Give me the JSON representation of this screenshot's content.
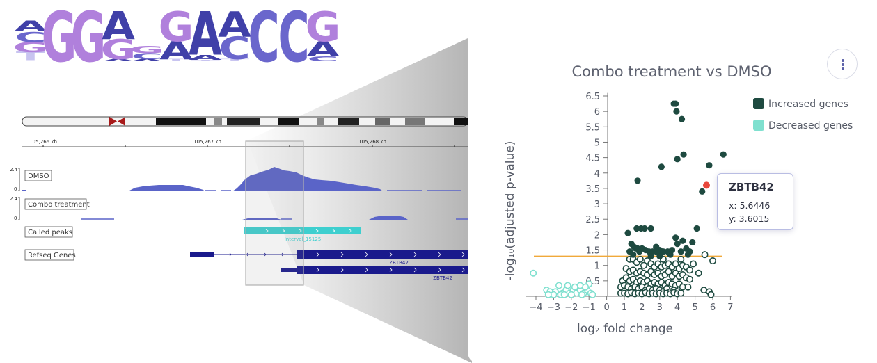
{
  "sequence_logo": {
    "columns": [
      [
        "T",
        "G",
        "C",
        "A"
      ],
      [
        "G"
      ],
      [
        "G"
      ],
      [
        "A",
        "G",
        "A"
      ],
      [
        "A",
        "C",
        "G"
      ],
      [
        "T",
        "A",
        "G"
      ],
      [
        "T",
        "A",
        "A"
      ],
      [
        "T",
        "C",
        "A"
      ],
      [
        "C"
      ],
      [
        "C"
      ],
      [
        "C",
        "A",
        "G"
      ]
    ],
    "colors": {
      "A": "#4040a8",
      "C": "#6a66cc",
      "G": "#b080dc",
      "T": "#c8c4f0"
    }
  },
  "genome_browser": {
    "coordinates": [
      "105,266 kb",
      "105,267 kb",
      "105,268 kb"
    ],
    "tracks": {
      "dmso": {
        "label": "DMSO",
        "scale_max": "2.4",
        "scale_min": "0"
      },
      "combo": {
        "label": "Combo treatment",
        "scale_max": "2.4",
        "scale_min": "0"
      },
      "peaks": {
        "label": "Called peaks",
        "peak_name": "Interval_15125"
      },
      "refseq": {
        "label": "Refseq Genes",
        "gene_name": "ZBTB42"
      }
    },
    "colors": {
      "signal": "#5a64c8",
      "peak": "#3ecfcf",
      "gene": "#1a1a8c"
    }
  },
  "chart_data": {
    "type": "scatter",
    "title": "Combo treatment vs DMSO",
    "xlabel": "log₂ fold change",
    "ylabel": "-log₁₀(adjusted p-value)",
    "xlim": [
      -4.4,
      7.1
    ],
    "ylim": [
      0,
      6.6
    ],
    "xticks": [
      -4,
      -3,
      -2,
      -1,
      0,
      1,
      2,
      3,
      4,
      5,
      6,
      7
    ],
    "yticks": [
      0.5,
      1,
      1.5,
      2,
      2.5,
      3,
      3.5,
      4,
      4.5,
      5,
      5.5,
      6,
      6.5
    ],
    "threshold_y": 1.3,
    "legend": {
      "position": "top-right"
    },
    "colors": {
      "increased": "#1e4a40",
      "decreased": "#7fe0cf",
      "highlight": "#e8483c",
      "threshold": "#f0a93a"
    },
    "series": [
      {
        "name": "Increased genes",
        "filled": [
          [
            3.8,
            6.25
          ],
          [
            3.9,
            6.25
          ],
          [
            3.95,
            6.0
          ],
          [
            4.25,
            5.75
          ],
          [
            6.6,
            4.6
          ],
          [
            4.35,
            4.6
          ],
          [
            4.0,
            4.45
          ],
          [
            5.8,
            4.25
          ],
          [
            3.1,
            4.2
          ],
          [
            1.75,
            3.75
          ],
          [
            5.4,
            3.4
          ],
          [
            1.7,
            2.2
          ],
          [
            1.95,
            2.2
          ],
          [
            2.15,
            2.2
          ],
          [
            2.5,
            2.2
          ],
          [
            3.9,
            1.9
          ],
          [
            5.1,
            2.2
          ],
          [
            1.2,
            2.05
          ],
          [
            1.4,
            1.7
          ],
          [
            1.55,
            1.6
          ],
          [
            1.65,
            1.55
          ],
          [
            1.75,
            1.55
          ],
          [
            1.85,
            1.45
          ],
          [
            2.0,
            1.55
          ],
          [
            2.2,
            1.5
          ],
          [
            2.4,
            1.45
          ],
          [
            2.6,
            1.45
          ],
          [
            2.8,
            1.45
          ],
          [
            3.0,
            1.5
          ],
          [
            3.2,
            1.45
          ],
          [
            3.45,
            1.45
          ],
          [
            3.7,
            1.5
          ],
          [
            4.0,
            1.7
          ],
          [
            4.2,
            1.45
          ],
          [
            4.5,
            1.55
          ],
          [
            4.6,
            1.35
          ],
          [
            4.3,
            1.8
          ],
          [
            3.6,
            1.35
          ],
          [
            3.0,
            1.3
          ],
          [
            2.5,
            1.3
          ],
          [
            1.5,
            1.35
          ],
          [
            2.8,
            1.6
          ],
          [
            4.7,
            1.45
          ],
          [
            4.85,
            1.75
          ],
          [
            1.3,
            1.45
          ]
        ],
        "hollow": [
          [
            5.55,
            1.35
          ],
          [
            6.0,
            1.15
          ],
          [
            4.2,
            1.2
          ],
          [
            3.2,
            1.2
          ],
          [
            1.3,
            1.2
          ],
          [
            1.5,
            1.2
          ],
          [
            1.7,
            1.1
          ],
          [
            1.9,
            1.2
          ],
          [
            2.1,
            1.0
          ],
          [
            2.3,
            1.15
          ],
          [
            2.5,
            1.05
          ],
          [
            2.7,
            0.95
          ],
          [
            2.9,
            1.05
          ],
          [
            3.1,
            0.95
          ],
          [
            3.3,
            1.0
          ],
          [
            3.5,
            1.05
          ],
          [
            3.7,
            0.95
          ],
          [
            3.9,
            1.05
          ],
          [
            4.1,
            0.9
          ],
          [
            4.3,
            1.0
          ],
          [
            4.5,
            0.95
          ],
          [
            4.7,
            0.85
          ],
          [
            4.9,
            1.05
          ],
          [
            5.2,
            0.75
          ],
          [
            1.1,
            0.9
          ],
          [
            1.3,
            0.8
          ],
          [
            1.5,
            0.85
          ],
          [
            1.7,
            0.75
          ],
          [
            1.9,
            0.8
          ],
          [
            2.1,
            0.75
          ],
          [
            2.3,
            0.7
          ],
          [
            2.5,
            0.8
          ],
          [
            2.7,
            0.7
          ],
          [
            2.9,
            0.75
          ],
          [
            3.1,
            0.65
          ],
          [
            3.3,
            0.7
          ],
          [
            3.5,
            0.8
          ],
          [
            3.7,
            0.65
          ],
          [
            3.9,
            0.75
          ],
          [
            4.1,
            0.65
          ],
          [
            4.3,
            0.7
          ],
          [
            4.5,
            0.6
          ],
          [
            4.7,
            0.55
          ],
          [
            0.9,
            0.5
          ],
          [
            1.1,
            0.6
          ],
          [
            1.3,
            0.5
          ],
          [
            1.5,
            0.55
          ],
          [
            1.7,
            0.45
          ],
          [
            1.9,
            0.5
          ],
          [
            2.1,
            0.45
          ],
          [
            2.3,
            0.5
          ],
          [
            2.5,
            0.4
          ],
          [
            2.7,
            0.45
          ],
          [
            2.9,
            0.4
          ],
          [
            3.1,
            0.45
          ],
          [
            3.3,
            0.35
          ],
          [
            3.5,
            0.45
          ],
          [
            3.7,
            0.4
          ],
          [
            3.9,
            0.35
          ],
          [
            4.1,
            0.4
          ],
          [
            4.3,
            0.3
          ],
          [
            4.6,
            0.3
          ],
          [
            0.8,
            0.3
          ],
          [
            1.0,
            0.35
          ],
          [
            1.2,
            0.3
          ],
          [
            1.4,
            0.25
          ],
          [
            1.6,
            0.3
          ],
          [
            1.8,
            0.25
          ],
          [
            2.0,
            0.3
          ],
          [
            2.2,
            0.2
          ],
          [
            2.4,
            0.25
          ],
          [
            2.6,
            0.2
          ],
          [
            2.8,
            0.25
          ],
          [
            3.0,
            0.2
          ],
          [
            3.2,
            0.15
          ],
          [
            3.4,
            0.25
          ],
          [
            3.6,
            0.15
          ],
          [
            3.8,
            0.2
          ],
          [
            4.0,
            0.15
          ],
          [
            0.8,
            0.1
          ],
          [
            1.0,
            0.1
          ],
          [
            1.2,
            0.08
          ],
          [
            1.4,
            0.12
          ],
          [
            1.6,
            0.08
          ],
          [
            1.8,
            0.1
          ],
          [
            2.0,
            0.08
          ],
          [
            2.2,
            0.12
          ],
          [
            2.4,
            0.08
          ],
          [
            2.6,
            0.1
          ],
          [
            2.8,
            0.08
          ],
          [
            3.0,
            0.1
          ],
          [
            3.2,
            0.08
          ],
          [
            3.4,
            0.1
          ],
          [
            3.6,
            0.08
          ],
          [
            3.8,
            0.12
          ],
          [
            4.0,
            0.08
          ],
          [
            4.2,
            0.1
          ],
          [
            5.5,
            0.2
          ],
          [
            5.8,
            0.15
          ],
          [
            5.9,
            0.05
          ]
        ]
      },
      {
        "name": "Decreased genes",
        "hollow": [
          [
            -4.15,
            0.75
          ],
          [
            -3.4,
            0.2
          ],
          [
            -3.2,
            0.15
          ],
          [
            -2.9,
            0.15
          ],
          [
            -2.7,
            0.35
          ],
          [
            -2.5,
            0.1
          ],
          [
            -2.3,
            0.2
          ],
          [
            -2.1,
            0.1
          ],
          [
            -1.9,
            0.2
          ],
          [
            -1.7,
            0.1
          ],
          [
            -1.5,
            0.2
          ],
          [
            -1.3,
            0.1
          ],
          [
            -1.1,
            0.2
          ],
          [
            -0.9,
            0.1
          ],
          [
            -2.2,
            0.35
          ],
          [
            -1.5,
            0.35
          ],
          [
            -1.0,
            0.4
          ],
          [
            -3.0,
            0.05
          ],
          [
            -2.6,
            0.05
          ],
          [
            -2.0,
            0.05
          ],
          [
            -1.4,
            0.05
          ],
          [
            -0.8,
            0.05
          ],
          [
            -1.8,
            0.3
          ],
          [
            -1.2,
            0.3
          ],
          [
            -2.4,
            0.05
          ],
          [
            -3.3,
            0.05
          ]
        ]
      }
    ],
    "highlight": {
      "label": "ZBTB42",
      "x": 5.6446,
      "y": 3.6015
    }
  },
  "tooltip": {
    "title": "ZBTB42",
    "x_line": "x: 5.6446",
    "y_line": "y: 3.6015"
  }
}
